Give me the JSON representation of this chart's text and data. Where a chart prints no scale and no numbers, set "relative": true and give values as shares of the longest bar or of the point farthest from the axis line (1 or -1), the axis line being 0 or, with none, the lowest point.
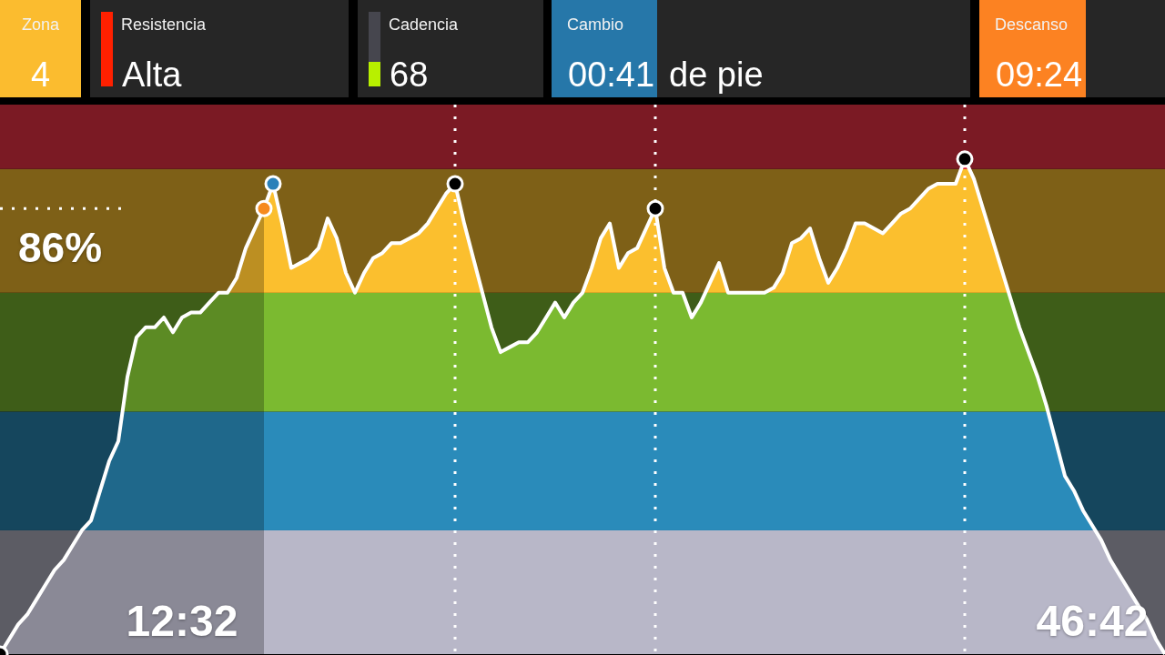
{
  "chart_data": [
    {
      "type": "other",
      "categories": [
        "Zona",
        "Resistencia",
        "Cadencia",
        "Cambio",
        "Descanso"
      ],
      "value_labels": [
        "4",
        "Alta",
        "68",
        "00:41",
        "09:24"
      ],
      "colors": [
        "#fbbc2f",
        "#262626",
        "#262626",
        "#2677a9",
        "#fc8222"
      ],
      "annotations": [
        "de pie"
      ]
    },
    {
      "type": "line",
      "relative": true,
      "categories": [
        null,
        null,
        null,
        null,
        null,
        null,
        null,
        null,
        null,
        null,
        null,
        null,
        null,
        null,
        null,
        null,
        null,
        null,
        null,
        null,
        "12:32",
        null,
        null,
        null,
        null,
        null,
        null,
        null,
        null,
        null,
        null,
        null,
        null,
        null,
        null,
        null,
        null,
        null,
        null,
        null,
        null,
        null,
        null,
        null,
        null,
        null,
        null,
        null,
        null,
        null,
        null,
        null,
        null,
        null,
        null,
        null,
        null,
        null,
        null,
        null,
        null,
        null,
        null,
        null,
        null,
        null,
        null,
        null,
        null,
        null,
        null,
        null,
        null,
        null,
        null,
        null,
        null,
        null,
        null,
        null,
        null,
        null,
        null,
        null,
        null,
        null,
        null,
        null,
        null,
        null,
        null,
        null,
        null,
        null,
        null,
        null,
        null,
        null,
        null,
        null,
        null,
        null,
        null,
        null,
        null,
        null,
        null,
        null,
        null,
        null,
        null,
        null,
        null,
        null,
        null,
        null,
        null,
        null,
        null,
        null,
        "46:42",
        null,
        null,
        null,
        null,
        null,
        null,
        null,
        null
      ],
      "series": [
        {
          "color": "#ffffff",
          "values": [
            0,
            0.03,
            0.06,
            0.08,
            0.11,
            0.14,
            0.17,
            0.19,
            0.22,
            0.25,
            0.27,
            0.33,
            0.39,
            0.43,
            0.56,
            0.64,
            0.66,
            0.66,
            0.68,
            0.65,
            0.68,
            0.69,
            0.69,
            0.71,
            0.73,
            0.73,
            0.76,
            0.82,
            0.86,
            0.9,
            0.95,
            0.87,
            0.78,
            0.79,
            0.8,
            0.82,
            0.88,
            0.84,
            0.77,
            0.73,
            0.77,
            0.8,
            0.81,
            0.83,
            0.83,
            0.84,
            0.85,
            0.87,
            0.9,
            0.93,
            0.95,
            0.87,
            0.8,
            0.73,
            0.66,
            0.61,
            0.62,
            0.63,
            0.63,
            0.65,
            0.68,
            0.71,
            0.68,
            0.71,
            0.73,
            0.78,
            0.84,
            0.87,
            0.78,
            0.81,
            0.82,
            0.86,
            0.9,
            0.78,
            0.73,
            0.73,
            0.68,
            0.71,
            0.75,
            0.79,
            0.73,
            0.73,
            0.73,
            0.73,
            0.73,
            0.74,
            0.77,
            0.83,
            0.84,
            0.86,
            0.8,
            0.75,
            0.78,
            0.82,
            0.87,
            0.87,
            0.86,
            0.85,
            0.87,
            0.89,
            0.9,
            0.92,
            0.94,
            0.95,
            0.95,
            0.95,
            1,
            0.96,
            0.9,
            0.84,
            0.78,
            0.72,
            0.66,
            0.61,
            0.56,
            0.5,
            0.43,
            0.36,
            0.33,
            0.29,
            0.26,
            0.23,
            0.19,
            0.16,
            0.13,
            0.1,
            0.07,
            0.03,
            0
          ]
        },
        {
          "type": "area",
          "color": "#000000",
          "values": [
            0,
            0.03,
            0.06,
            0.08,
            0.11,
            0.14,
            0.17,
            0.19,
            0.22,
            0.25,
            0.27,
            0.33,
            0.39,
            0.43,
            0.56,
            0.64,
            0.66,
            0.66,
            0.68,
            0.65,
            0.68,
            0.69,
            0.69,
            0.71,
            0.73,
            0.73,
            0.76,
            0.82,
            0.86,
            0.9,
            null,
            null,
            null,
            null,
            null,
            null,
            null,
            null,
            null,
            null,
            null,
            null,
            null,
            null,
            null,
            null,
            null,
            null,
            null,
            null,
            null,
            null,
            null,
            null,
            null,
            null,
            null,
            null,
            null,
            null,
            null,
            null,
            null,
            null,
            null,
            null,
            null,
            null,
            null,
            null,
            null,
            null,
            null,
            null,
            null,
            null,
            null,
            null,
            null,
            null,
            null,
            null,
            null,
            null,
            null,
            null,
            null,
            null,
            null,
            null,
            null,
            null,
            null,
            null,
            null,
            null,
            null,
            null,
            null,
            null,
            null,
            null,
            null,
            null,
            null,
            null,
            null,
            null,
            null,
            null,
            null,
            null,
            null,
            null,
            null,
            null,
            null,
            null,
            null,
            null,
            null,
            null,
            null,
            null,
            null,
            null,
            null,
            null,
            null
          ]
        },
        {
          "type": "scatter",
          "marker": "circle",
          "color": "#ffffff",
          "values": [
            0,
            null,
            null,
            null,
            null,
            null,
            null,
            null,
            null,
            null,
            null,
            null,
            null,
            null,
            null,
            null,
            null,
            null,
            null,
            null,
            null,
            null,
            null,
            null,
            null,
            null,
            null,
            null,
            null,
            0.9,
            0.95,
            null,
            null,
            null,
            null,
            null,
            null,
            null,
            null,
            null,
            null,
            null,
            null,
            null,
            null,
            null,
            null,
            null,
            null,
            null,
            0.95,
            null,
            null,
            null,
            null,
            null,
            null,
            null,
            null,
            null,
            null,
            null,
            null,
            null,
            null,
            null,
            null,
            null,
            null,
            null,
            null,
            null,
            0.9,
            null,
            null,
            null,
            null,
            null,
            null,
            null,
            null,
            null,
            null,
            null,
            null,
            null,
            null,
            null,
            null,
            null,
            null,
            null,
            null,
            null,
            null,
            null,
            null,
            null,
            null,
            null,
            null,
            null,
            null,
            null,
            null,
            null,
            1,
            null,
            null,
            null,
            null,
            null,
            null,
            null,
            null,
            null,
            null,
            null,
            null,
            null,
            null,
            null,
            null,
            null,
            null,
            null,
            null,
            null,
            null
          ],
          "colors": [
            "#000000",
            null,
            null,
            null,
            null,
            null,
            null,
            null,
            null,
            null,
            null,
            null,
            null,
            null,
            null,
            null,
            null,
            null,
            null,
            null,
            null,
            null,
            null,
            null,
            null,
            null,
            null,
            null,
            null,
            "#f68a1e",
            "#2a80b9",
            null,
            null,
            null,
            null,
            null,
            null,
            null,
            null,
            null,
            null,
            null,
            null,
            null,
            null,
            null,
            null,
            null,
            null,
            null,
            "#000000",
            null,
            null,
            null,
            null,
            null,
            null,
            null,
            null,
            null,
            null,
            null,
            null,
            null,
            null,
            null,
            null,
            null,
            null,
            null,
            null,
            null,
            "#000000",
            null,
            null,
            null,
            null,
            null,
            null,
            null,
            null,
            null,
            null,
            null,
            null,
            null,
            null,
            null,
            null,
            null,
            null,
            null,
            null,
            null,
            null,
            null,
            null,
            null,
            null,
            null,
            null,
            null,
            null,
            null,
            null,
            null,
            "#000000",
            null,
            null,
            null,
            null,
            null,
            null,
            null,
            null,
            null,
            null,
            null,
            null,
            null,
            null,
            null,
            null,
            null,
            null,
            null,
            null,
            null,
            null
          ]
        }
      ],
      "bands": [
        {
          "axis": "y",
          "from": 0,
          "to": 0.25,
          "color": "#b8b7c8"
        },
        {
          "axis": "y",
          "from": 0.25,
          "to": 0.49,
          "color": "#2a8bba"
        },
        {
          "axis": "y",
          "from": 0.49,
          "to": 0.73,
          "color": "#7bba30"
        },
        {
          "axis": "y",
          "from": 0.73,
          "to": 0.98,
          "color": "#fbbf2e"
        },
        {
          "axis": "y",
          "from": 0.98,
          "to": 1.11,
          "color": "#f63448"
        }
      ],
      "ref_lines": [
        {
          "axis": "y",
          "value": 0.9,
          "color": "#ffffff",
          "line_style": "dotted"
        }
      ],
      "annotations": [
        "86%"
      ]
    }
  ]
}
